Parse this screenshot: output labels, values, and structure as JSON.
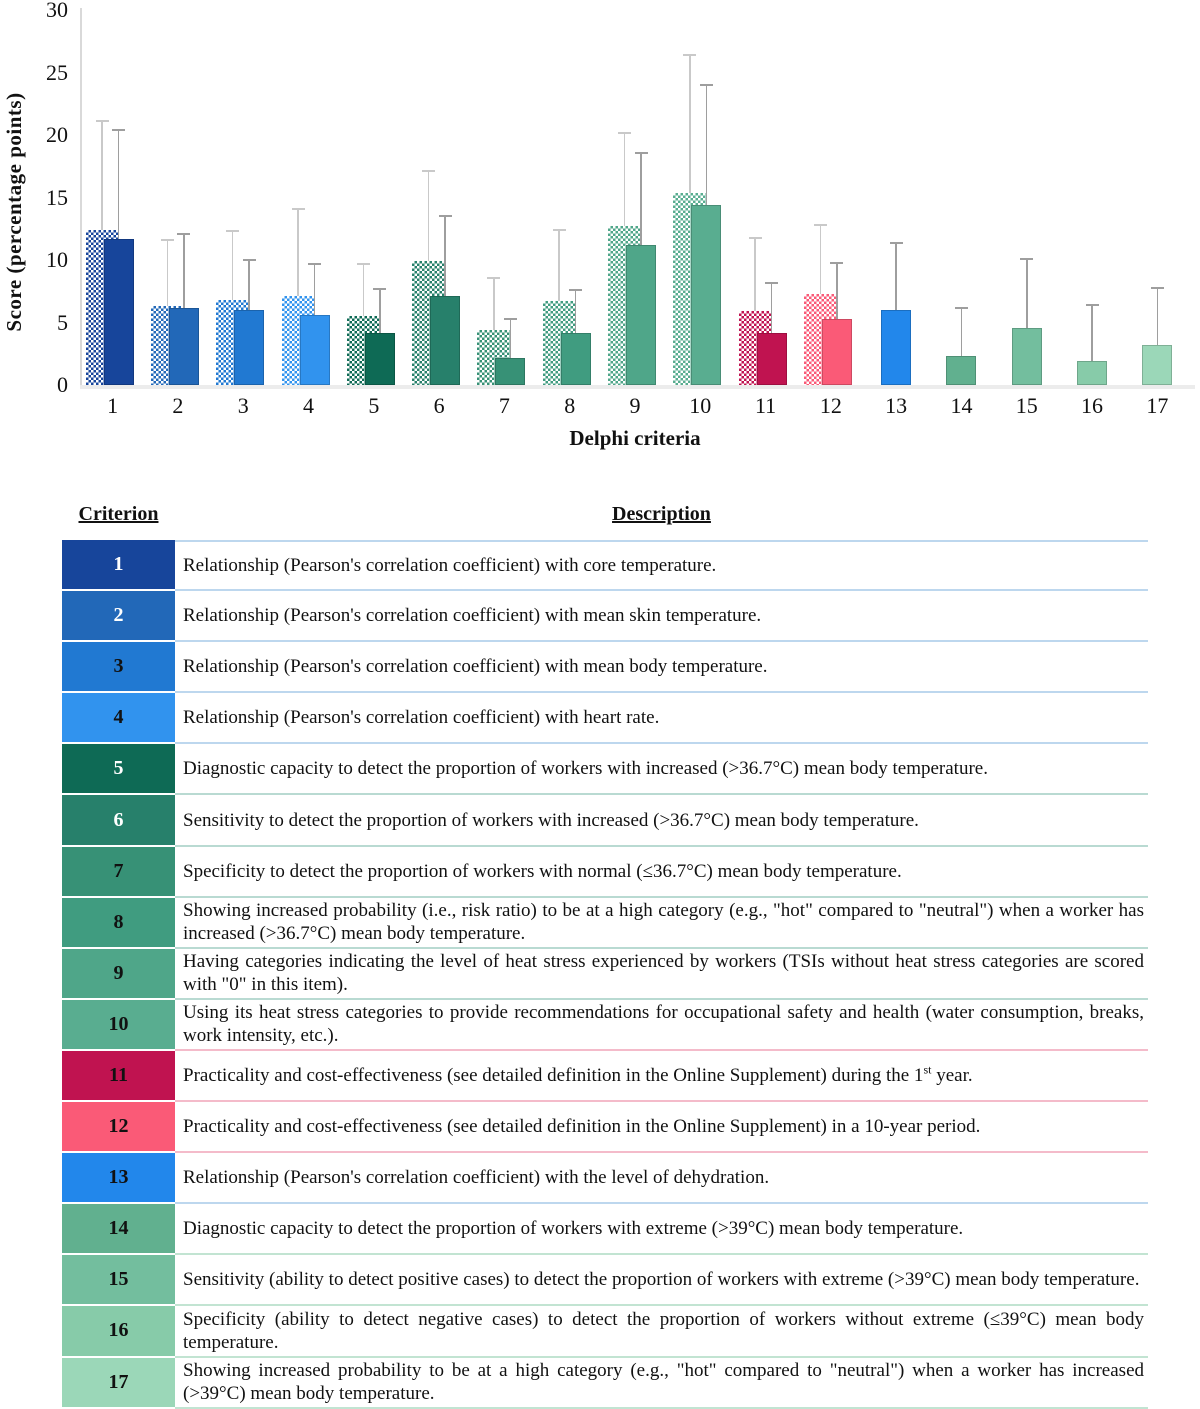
{
  "chart_data": {
    "type": "bar",
    "title": "",
    "xlabel": "Delphi criteria",
    "ylabel": "Score (percentage points)",
    "ylim": [
      0,
      30
    ],
    "yticks": [
      0,
      5,
      10,
      15,
      20,
      25,
      30
    ],
    "grid": false,
    "legend_position": "none",
    "categories": [
      "1",
      "2",
      "3",
      "4",
      "5",
      "6",
      "7",
      "8",
      "9",
      "10",
      "11",
      "12",
      "13",
      "14",
      "15",
      "16",
      "17"
    ],
    "series": [
      {
        "name": "hatched-bar-series",
        "style": "hatched",
        "values": [
          12.4,
          6.3,
          6.8,
          7.1,
          5.5,
          9.9,
          4.4,
          6.7,
          12.7,
          15.4,
          5.9,
          7.3,
          null,
          null,
          null,
          null,
          null
        ],
        "error_top": [
          21.1,
          11.6,
          12.3,
          14.1,
          9.7,
          17.1,
          8.6,
          12.4,
          20.2,
          26.4,
          11.8,
          12.8,
          null,
          null,
          null,
          null,
          null
        ],
        "error_color": "#C9C9C9"
      },
      {
        "name": "solid-bar-series",
        "style": "solid",
        "values": [
          11.7,
          6.2,
          6.0,
          5.6,
          4.2,
          7.1,
          2.2,
          4.2,
          11.2,
          14.4,
          4.2,
          5.3,
          6.0,
          2.3,
          4.6,
          1.9,
          3.2
        ],
        "error_top": [
          20.4,
          12.1,
          10.0,
          9.7,
          7.7,
          13.5,
          5.3,
          7.6,
          18.6,
          24.0,
          8.2,
          9.8,
          11.4,
          6.2,
          10.1,
          6.4,
          7.8
        ],
        "error_color": "#9E9E9E"
      }
    ],
    "bar_colors": [
      "#17459B",
      "#2268B8",
      "#2179D2",
      "#3193EE",
      "#0E6A55",
      "#27806B",
      "#379176",
      "#409C80",
      "#4FA689",
      "#59AD90",
      "#C01350",
      "#FA5A77",
      "#2287EB",
      "#61B08F",
      "#73BE9E",
      "#87CBA9",
      "#9BD7B8"
    ]
  },
  "table": {
    "headers": {
      "criterion": "Criterion",
      "description": "Description"
    },
    "rows": [
      {
        "num": "1",
        "color": "#17459B",
        "num_color": "#FFFFFF",
        "sep": "#BDD7EE",
        "desc": [
          {
            "t": "Relationship (Pearson's correlation coefficient) with core temperature."
          }
        ]
      },
      {
        "num": "2",
        "color": "#2268B8",
        "num_color": "#FFFFFF",
        "sep": "#BDD7EE",
        "desc": [
          {
            "t": "Relationship (Pearson's correlation coefficient) with mean skin temperature."
          }
        ]
      },
      {
        "num": "3",
        "color": "#2179D2",
        "num_color": "#111111",
        "sep": "#BDD7EE",
        "desc": [
          {
            "t": "Relationship (Pearson's correlation coefficient) with mean body temperature."
          }
        ]
      },
      {
        "num": "4",
        "color": "#3193EE",
        "num_color": "#111111",
        "sep": "#BDD7EE",
        "desc": [
          {
            "t": "Relationship (Pearson's correlation coefficient) with heart rate."
          }
        ]
      },
      {
        "num": "5",
        "color": "#0E6A55",
        "num_color": "#FFFFFF",
        "sep": "#B9DAD2",
        "desc": [
          {
            "t": "Diagnostic capacity to detect the proportion of workers with increased (>36.7°C) mean body temperature."
          }
        ]
      },
      {
        "num": "6",
        "color": "#27806B",
        "num_color": "#FFFFFF",
        "sep": "#B9DAD2",
        "desc": [
          {
            "t": "Sensitivity to detect the proportion of workers with increased (>36.7°C) mean body temperature."
          }
        ]
      },
      {
        "num": "7",
        "color": "#379176",
        "num_color": "#111111",
        "sep": "#B9DAD2",
        "desc": [
          {
            "t": "Specificity to detect the proportion of workers with normal (≤36.7°C) mean body temperature."
          }
        ]
      },
      {
        "num": "8",
        "color": "#409C80",
        "num_color": "#111111",
        "sep": "#B9DAD2",
        "desc": [
          {
            "t": "Showing increased probability (i.e., risk ratio) to be at a high category (e.g., \"hot\" compared to \"neutral\") when a worker has increased (>36.7°C) mean body temperature."
          }
        ]
      },
      {
        "num": "9",
        "color": "#4FA689",
        "num_color": "#111111",
        "sep": "#B9DAD2",
        "desc": [
          {
            "t": "Having categories indicating the level of heat stress experienced by workers (TSIs without heat stress categories are scored with \"0\" in this item)."
          }
        ]
      },
      {
        "num": "10",
        "color": "#59AD90",
        "num_color": "#111111",
        "sep": "#F4BBCA",
        "desc": [
          {
            "t": "Using its heat stress categories to provide recommendations for occupational safety and health (water consumption, breaks, work intensity, etc.)."
          }
        ]
      },
      {
        "num": "11",
        "color": "#C01350",
        "num_color": "#111111",
        "sep": "#F4BBCA",
        "desc": [
          {
            "t": "Practicality and cost-effectiveness (see detailed definition in the Online Supplement) during the 1"
          },
          {
            "t": "st",
            "sup": true
          },
          {
            "t": " year."
          }
        ]
      },
      {
        "num": "12",
        "color": "#FA5A77",
        "num_color": "#111111",
        "sep": "#F4BBCA",
        "desc": [
          {
            "t": "Practicality and cost-effectiveness (see detailed definition in the Online Supplement) in a 10-year period."
          }
        ]
      },
      {
        "num": "13",
        "color": "#2287EB",
        "num_color": "#111111",
        "sep": "#BDD7EE",
        "desc": [
          {
            "t": "Relationship (Pearson's correlation coefficient) with the level of dehydration."
          }
        ]
      },
      {
        "num": "14",
        "color": "#61B08F",
        "num_color": "#111111",
        "sep": "#C2E4D2",
        "desc": [
          {
            "t": "Diagnostic capacity to detect the proportion of workers with extreme (>39°C) mean body temperature."
          }
        ]
      },
      {
        "num": "15",
        "color": "#73BE9E",
        "num_color": "#111111",
        "sep": "#C2E4D2",
        "desc": [
          {
            "t": "Sensitivity (ability to detect positive cases) to detect the proportion of workers with extreme (>39°C) mean body temperature."
          }
        ]
      },
      {
        "num": "16",
        "color": "#87CBA9",
        "num_color": "#111111",
        "sep": "#C2E4D2",
        "desc": [
          {
            "t": "Specificity (ability to detect negative cases) to detect the proportion of workers without extreme (≤39°C) mean body temperature."
          }
        ]
      },
      {
        "num": "17",
        "color": "#9BD7B8",
        "num_color": "#111111",
        "sep": "#C2E4D2",
        "desc": [
          {
            "t": "Showing increased probability to be at a high category (e.g., \"hot\" compared to \"neutral\") when a worker has increased (>39°C) mean body temperature."
          }
        ]
      }
    ]
  }
}
